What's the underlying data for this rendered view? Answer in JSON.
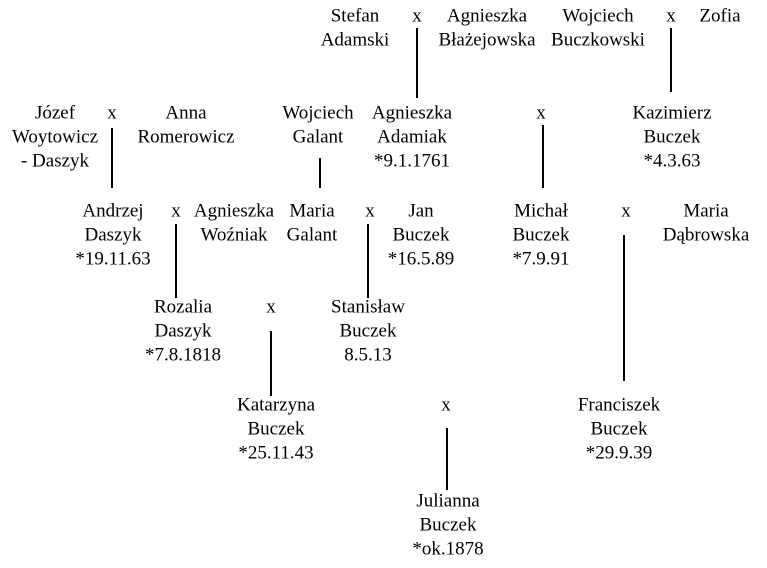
{
  "nodes": [
    {
      "lines": [
        "Stefan",
        "Adamski"
      ]
    },
    {
      "lines": [
        "x"
      ]
    },
    {
      "lines": [
        "Agnieszka",
        "Błażejowska"
      ]
    },
    {
      "lines": [
        "Wojciech",
        "Buczkowski"
      ]
    },
    {
      "lines": [
        "x"
      ]
    },
    {
      "lines": [
        "Zofia"
      ]
    },
    {
      "lines": [
        "Józef",
        "Woytowicz",
        "- Daszyk"
      ]
    },
    {
      "lines": [
        "x"
      ]
    },
    {
      "lines": [
        "Anna",
        "Romerowicz"
      ]
    },
    {
      "lines": [
        "Wojciech",
        "Galant"
      ]
    },
    {
      "lines": [
        "Agnieszka",
        "Adamiak",
        "*9.1.1761"
      ]
    },
    {
      "lines": [
        "x"
      ]
    },
    {
      "lines": [
        "Kazimierz",
        "Buczek",
        "*4.3.63"
      ]
    },
    {
      "lines": [
        "Andrzej",
        "Daszyk",
        "*19.11.63"
      ]
    },
    {
      "lines": [
        "x"
      ]
    },
    {
      "lines": [
        "Agnieszka",
        "Woźniak"
      ]
    },
    {
      "lines": [
        "Maria",
        "Galant"
      ]
    },
    {
      "lines": [
        "x"
      ]
    },
    {
      "lines": [
        "Jan",
        "Buczek",
        "*16.5.89"
      ]
    },
    {
      "lines": [
        "Michał",
        "Buczek",
        "*7.9.91"
      ]
    },
    {
      "lines": [
        "x"
      ]
    },
    {
      "lines": [
        "Maria",
        "Dąbrowska"
      ]
    },
    {
      "lines": [
        "Rozalia",
        "Daszyk",
        "*7.8.1818"
      ]
    },
    {
      "lines": [
        "x"
      ]
    },
    {
      "lines": [
        "Stanisław",
        "Buczek",
        "8.5.13"
      ]
    },
    {
      "lines": [
        "Katarzyna",
        "Buczek",
        "*25.11.43"
      ]
    },
    {
      "lines": [
        "x"
      ]
    },
    {
      "lines": [
        "Franciszek",
        "Buczek",
        "*29.9.39"
      ]
    },
    {
      "lines": [
        "Julianna",
        "Buczek",
        "*ok.1878"
      ]
    }
  ]
}
